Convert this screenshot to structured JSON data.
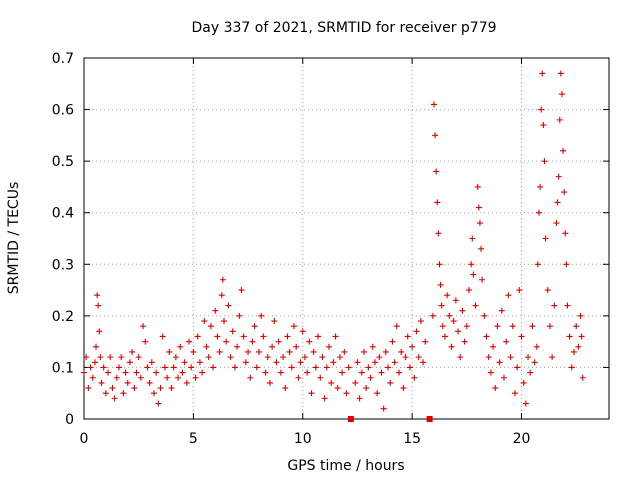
{
  "chart_data": {
    "type": "scatter",
    "title": "Day 337 of 2021, SRMTID for receiver p779",
    "xlabel": "GPS time / hours",
    "ylabel": "SRMTID / TECUs",
    "xlim": [
      0,
      24
    ],
    "ylim": [
      0,
      0.7
    ],
    "xticks": [
      "0",
      "5",
      "10",
      "15",
      "20"
    ],
    "yticks": [
      "0",
      "0.1",
      "0.2",
      "0.3",
      "0.4",
      "0.5",
      "0.6",
      "0.7"
    ],
    "grid": true,
    "marker": "+",
    "color": "#e00000",
    "data_gap_markers_x": [
      12.2,
      15.8
    ],
    "series": [
      {
        "name": "p779",
        "points": [
          [
            0.0,
            0.09
          ],
          [
            0.1,
            0.12
          ],
          [
            0.2,
            0.06
          ],
          [
            0.3,
            0.1
          ],
          [
            0.4,
            0.08
          ],
          [
            0.5,
            0.11
          ],
          [
            0.55,
            0.14
          ],
          [
            0.6,
            0.24
          ],
          [
            0.65,
            0.22
          ],
          [
            0.7,
            0.17
          ],
          [
            0.75,
            0.12
          ],
          [
            0.8,
            0.07
          ],
          [
            0.9,
            0.1
          ],
          [
            1.0,
            0.05
          ],
          [
            1.1,
            0.09
          ],
          [
            1.2,
            0.12
          ],
          [
            1.3,
            0.06
          ],
          [
            1.4,
            0.04
          ],
          [
            1.5,
            0.08
          ],
          [
            1.6,
            0.1
          ],
          [
            1.7,
            0.12
          ],
          [
            1.8,
            0.05
          ],
          [
            1.9,
            0.09
          ],
          [
            2.0,
            0.07
          ],
          [
            2.1,
            0.11
          ],
          [
            2.2,
            0.13
          ],
          [
            2.3,
            0.06
          ],
          [
            2.4,
            0.09
          ],
          [
            2.5,
            0.12
          ],
          [
            2.6,
            0.08
          ],
          [
            2.7,
            0.18
          ],
          [
            2.8,
            0.15
          ],
          [
            2.9,
            0.1
          ],
          [
            3.0,
            0.07
          ],
          [
            3.1,
            0.11
          ],
          [
            3.2,
            0.05
          ],
          [
            3.3,
            0.09
          ],
          [
            3.4,
            0.03
          ],
          [
            3.5,
            0.06
          ],
          [
            3.6,
            0.16
          ],
          [
            3.7,
            0.1
          ],
          [
            3.8,
            0.08
          ],
          [
            3.9,
            0.13
          ],
          [
            4.0,
            0.06
          ],
          [
            4.1,
            0.1
          ],
          [
            4.2,
            0.12
          ],
          [
            4.3,
            0.08
          ],
          [
            4.4,
            0.14
          ],
          [
            4.5,
            0.09
          ],
          [
            4.6,
            0.11
          ],
          [
            4.7,
            0.07
          ],
          [
            4.8,
            0.15
          ],
          [
            4.9,
            0.1
          ],
          [
            5.0,
            0.13
          ],
          [
            5.1,
            0.08
          ],
          [
            5.2,
            0.16
          ],
          [
            5.3,
            0.11
          ],
          [
            5.4,
            0.09
          ],
          [
            5.5,
            0.19
          ],
          [
            5.6,
            0.14
          ],
          [
            5.7,
            0.12
          ],
          [
            5.8,
            0.18
          ],
          [
            5.9,
            0.1
          ],
          [
            6.0,
            0.21
          ],
          [
            6.1,
            0.16
          ],
          [
            6.2,
            0.13
          ],
          [
            6.3,
            0.24
          ],
          [
            6.35,
            0.27
          ],
          [
            6.4,
            0.19
          ],
          [
            6.5,
            0.15
          ],
          [
            6.6,
            0.22
          ],
          [
            6.7,
            0.12
          ],
          [
            6.8,
            0.17
          ],
          [
            6.9,
            0.1
          ],
          [
            7.0,
            0.14
          ],
          [
            7.1,
            0.2
          ],
          [
            7.2,
            0.25
          ],
          [
            7.3,
            0.16
          ],
          [
            7.4,
            0.11
          ],
          [
            7.5,
            0.13
          ],
          [
            7.6,
            0.08
          ],
          [
            7.7,
            0.15
          ],
          [
            7.8,
            0.18
          ],
          [
            7.9,
            0.1
          ],
          [
            8.0,
            0.13
          ],
          [
            8.1,
            0.2
          ],
          [
            8.2,
            0.16
          ],
          [
            8.3,
            0.09
          ],
          [
            8.4,
            0.12
          ],
          [
            8.5,
            0.07
          ],
          [
            8.6,
            0.14
          ],
          [
            8.7,
            0.19
          ],
          [
            8.8,
            0.11
          ],
          [
            8.9,
            0.15
          ],
          [
            9.0,
            0.09
          ],
          [
            9.1,
            0.12
          ],
          [
            9.2,
            0.06
          ],
          [
            9.3,
            0.16
          ],
          [
            9.4,
            0.13
          ],
          [
            9.5,
            0.1
          ],
          [
            9.6,
            0.18
          ],
          [
            9.7,
            0.14
          ],
          [
            9.8,
            0.08
          ],
          [
            9.9,
            0.11
          ],
          [
            10.0,
            0.17
          ],
          [
            10.1,
            0.12
          ],
          [
            10.2,
            0.09
          ],
          [
            10.3,
            0.15
          ],
          [
            10.4,
            0.05
          ],
          [
            10.5,
            0.13
          ],
          [
            10.6,
            0.1
          ],
          [
            10.7,
            0.16
          ],
          [
            10.8,
            0.08
          ],
          [
            10.9,
            0.12
          ],
          [
            11.0,
            0.04
          ],
          [
            11.1,
            0.1
          ],
          [
            11.2,
            0.14
          ],
          [
            11.3,
            0.07
          ],
          [
            11.4,
            0.11
          ],
          [
            11.5,
            0.16
          ],
          [
            11.6,
            0.06
          ],
          [
            11.7,
            0.12
          ],
          [
            11.8,
            0.09
          ],
          [
            11.9,
            0.13
          ],
          [
            12.0,
            0.05
          ],
          [
            12.1,
            0.1
          ],
          [
            12.4,
            0.07
          ],
          [
            12.5,
            0.11
          ],
          [
            12.6,
            0.04
          ],
          [
            12.7,
            0.09
          ],
          [
            12.8,
            0.13
          ],
          [
            12.9,
            0.06
          ],
          [
            13.0,
            0.1
          ],
          [
            13.1,
            0.08
          ],
          [
            13.2,
            0.14
          ],
          [
            13.3,
            0.11
          ],
          [
            13.4,
            0.05
          ],
          [
            13.5,
            0.12
          ],
          [
            13.6,
            0.09
          ],
          [
            13.7,
            0.02
          ],
          [
            13.8,
            0.13
          ],
          [
            13.9,
            0.1
          ],
          [
            14.0,
            0.07
          ],
          [
            14.1,
            0.15
          ],
          [
            14.2,
            0.11
          ],
          [
            14.3,
            0.18
          ],
          [
            14.4,
            0.09
          ],
          [
            14.5,
            0.13
          ],
          [
            14.6,
            0.06
          ],
          [
            14.7,
            0.12
          ],
          [
            14.8,
            0.16
          ],
          [
            14.9,
            0.1
          ],
          [
            15.0,
            0.14
          ],
          [
            15.1,
            0.08
          ],
          [
            15.2,
            0.17
          ],
          [
            15.3,
            0.12
          ],
          [
            15.4,
            0.19
          ],
          [
            15.5,
            0.11
          ],
          [
            15.6,
            0.15
          ],
          [
            15.95,
            0.2
          ],
          [
            16.0,
            0.61
          ],
          [
            16.05,
            0.55
          ],
          [
            16.1,
            0.48
          ],
          [
            16.15,
            0.42
          ],
          [
            16.2,
            0.36
          ],
          [
            16.25,
            0.3
          ],
          [
            16.3,
            0.26
          ],
          [
            16.35,
            0.22
          ],
          [
            16.4,
            0.18
          ],
          [
            16.5,
            0.16
          ],
          [
            16.6,
            0.24
          ],
          [
            16.7,
            0.2
          ],
          [
            16.8,
            0.14
          ],
          [
            16.9,
            0.19
          ],
          [
            17.0,
            0.23
          ],
          [
            17.1,
            0.17
          ],
          [
            17.2,
            0.12
          ],
          [
            17.3,
            0.21
          ],
          [
            17.4,
            0.15
          ],
          [
            17.5,
            0.18
          ],
          [
            17.6,
            0.25
          ],
          [
            17.7,
            0.3
          ],
          [
            17.75,
            0.35
          ],
          [
            17.8,
            0.28
          ],
          [
            17.9,
            0.22
          ],
          [
            18.0,
            0.45
          ],
          [
            18.05,
            0.41
          ],
          [
            18.1,
            0.38
          ],
          [
            18.15,
            0.33
          ],
          [
            18.2,
            0.27
          ],
          [
            18.3,
            0.2
          ],
          [
            18.4,
            0.16
          ],
          [
            18.5,
            0.12
          ],
          [
            18.6,
            0.09
          ],
          [
            18.7,
            0.14
          ],
          [
            18.8,
            0.06
          ],
          [
            18.9,
            0.18
          ],
          [
            19.0,
            0.11
          ],
          [
            19.1,
            0.21
          ],
          [
            19.2,
            0.08
          ],
          [
            19.3,
            0.15
          ],
          [
            19.4,
            0.24
          ],
          [
            19.5,
            0.12
          ],
          [
            19.6,
            0.18
          ],
          [
            19.7,
            0.05
          ],
          [
            19.8,
            0.1
          ],
          [
            19.9,
            0.25
          ],
          [
            20.0,
            0.16
          ],
          [
            20.1,
            0.07
          ],
          [
            20.2,
            0.03
          ],
          [
            20.3,
            0.12
          ],
          [
            20.4,
            0.09
          ],
          [
            20.5,
            0.18
          ],
          [
            20.6,
            0.11
          ],
          [
            20.7,
            0.14
          ],
          [
            20.75,
            0.3
          ],
          [
            20.8,
            0.4
          ],
          [
            20.85,
            0.45
          ],
          [
            20.9,
            0.6
          ],
          [
            20.95,
            0.67
          ],
          [
            21.0,
            0.57
          ],
          [
            21.05,
            0.5
          ],
          [
            21.1,
            0.35
          ],
          [
            21.2,
            0.25
          ],
          [
            21.3,
            0.18
          ],
          [
            21.4,
            0.12
          ],
          [
            21.5,
            0.22
          ],
          [
            21.6,
            0.38
          ],
          [
            21.65,
            0.42
          ],
          [
            21.7,
            0.47
          ],
          [
            21.75,
            0.58
          ],
          [
            21.8,
            0.67
          ],
          [
            21.85,
            0.63
          ],
          [
            21.9,
            0.52
          ],
          [
            21.95,
            0.44
          ],
          [
            22.0,
            0.36
          ],
          [
            22.05,
            0.3
          ],
          [
            22.1,
            0.22
          ],
          [
            22.2,
            0.16
          ],
          [
            22.3,
            0.1
          ],
          [
            22.4,
            0.13
          ],
          [
            22.5,
            0.18
          ],
          [
            22.6,
            0.14
          ],
          [
            22.7,
            0.2
          ],
          [
            22.75,
            0.16
          ],
          [
            22.8,
            0.08
          ]
        ]
      }
    ]
  }
}
